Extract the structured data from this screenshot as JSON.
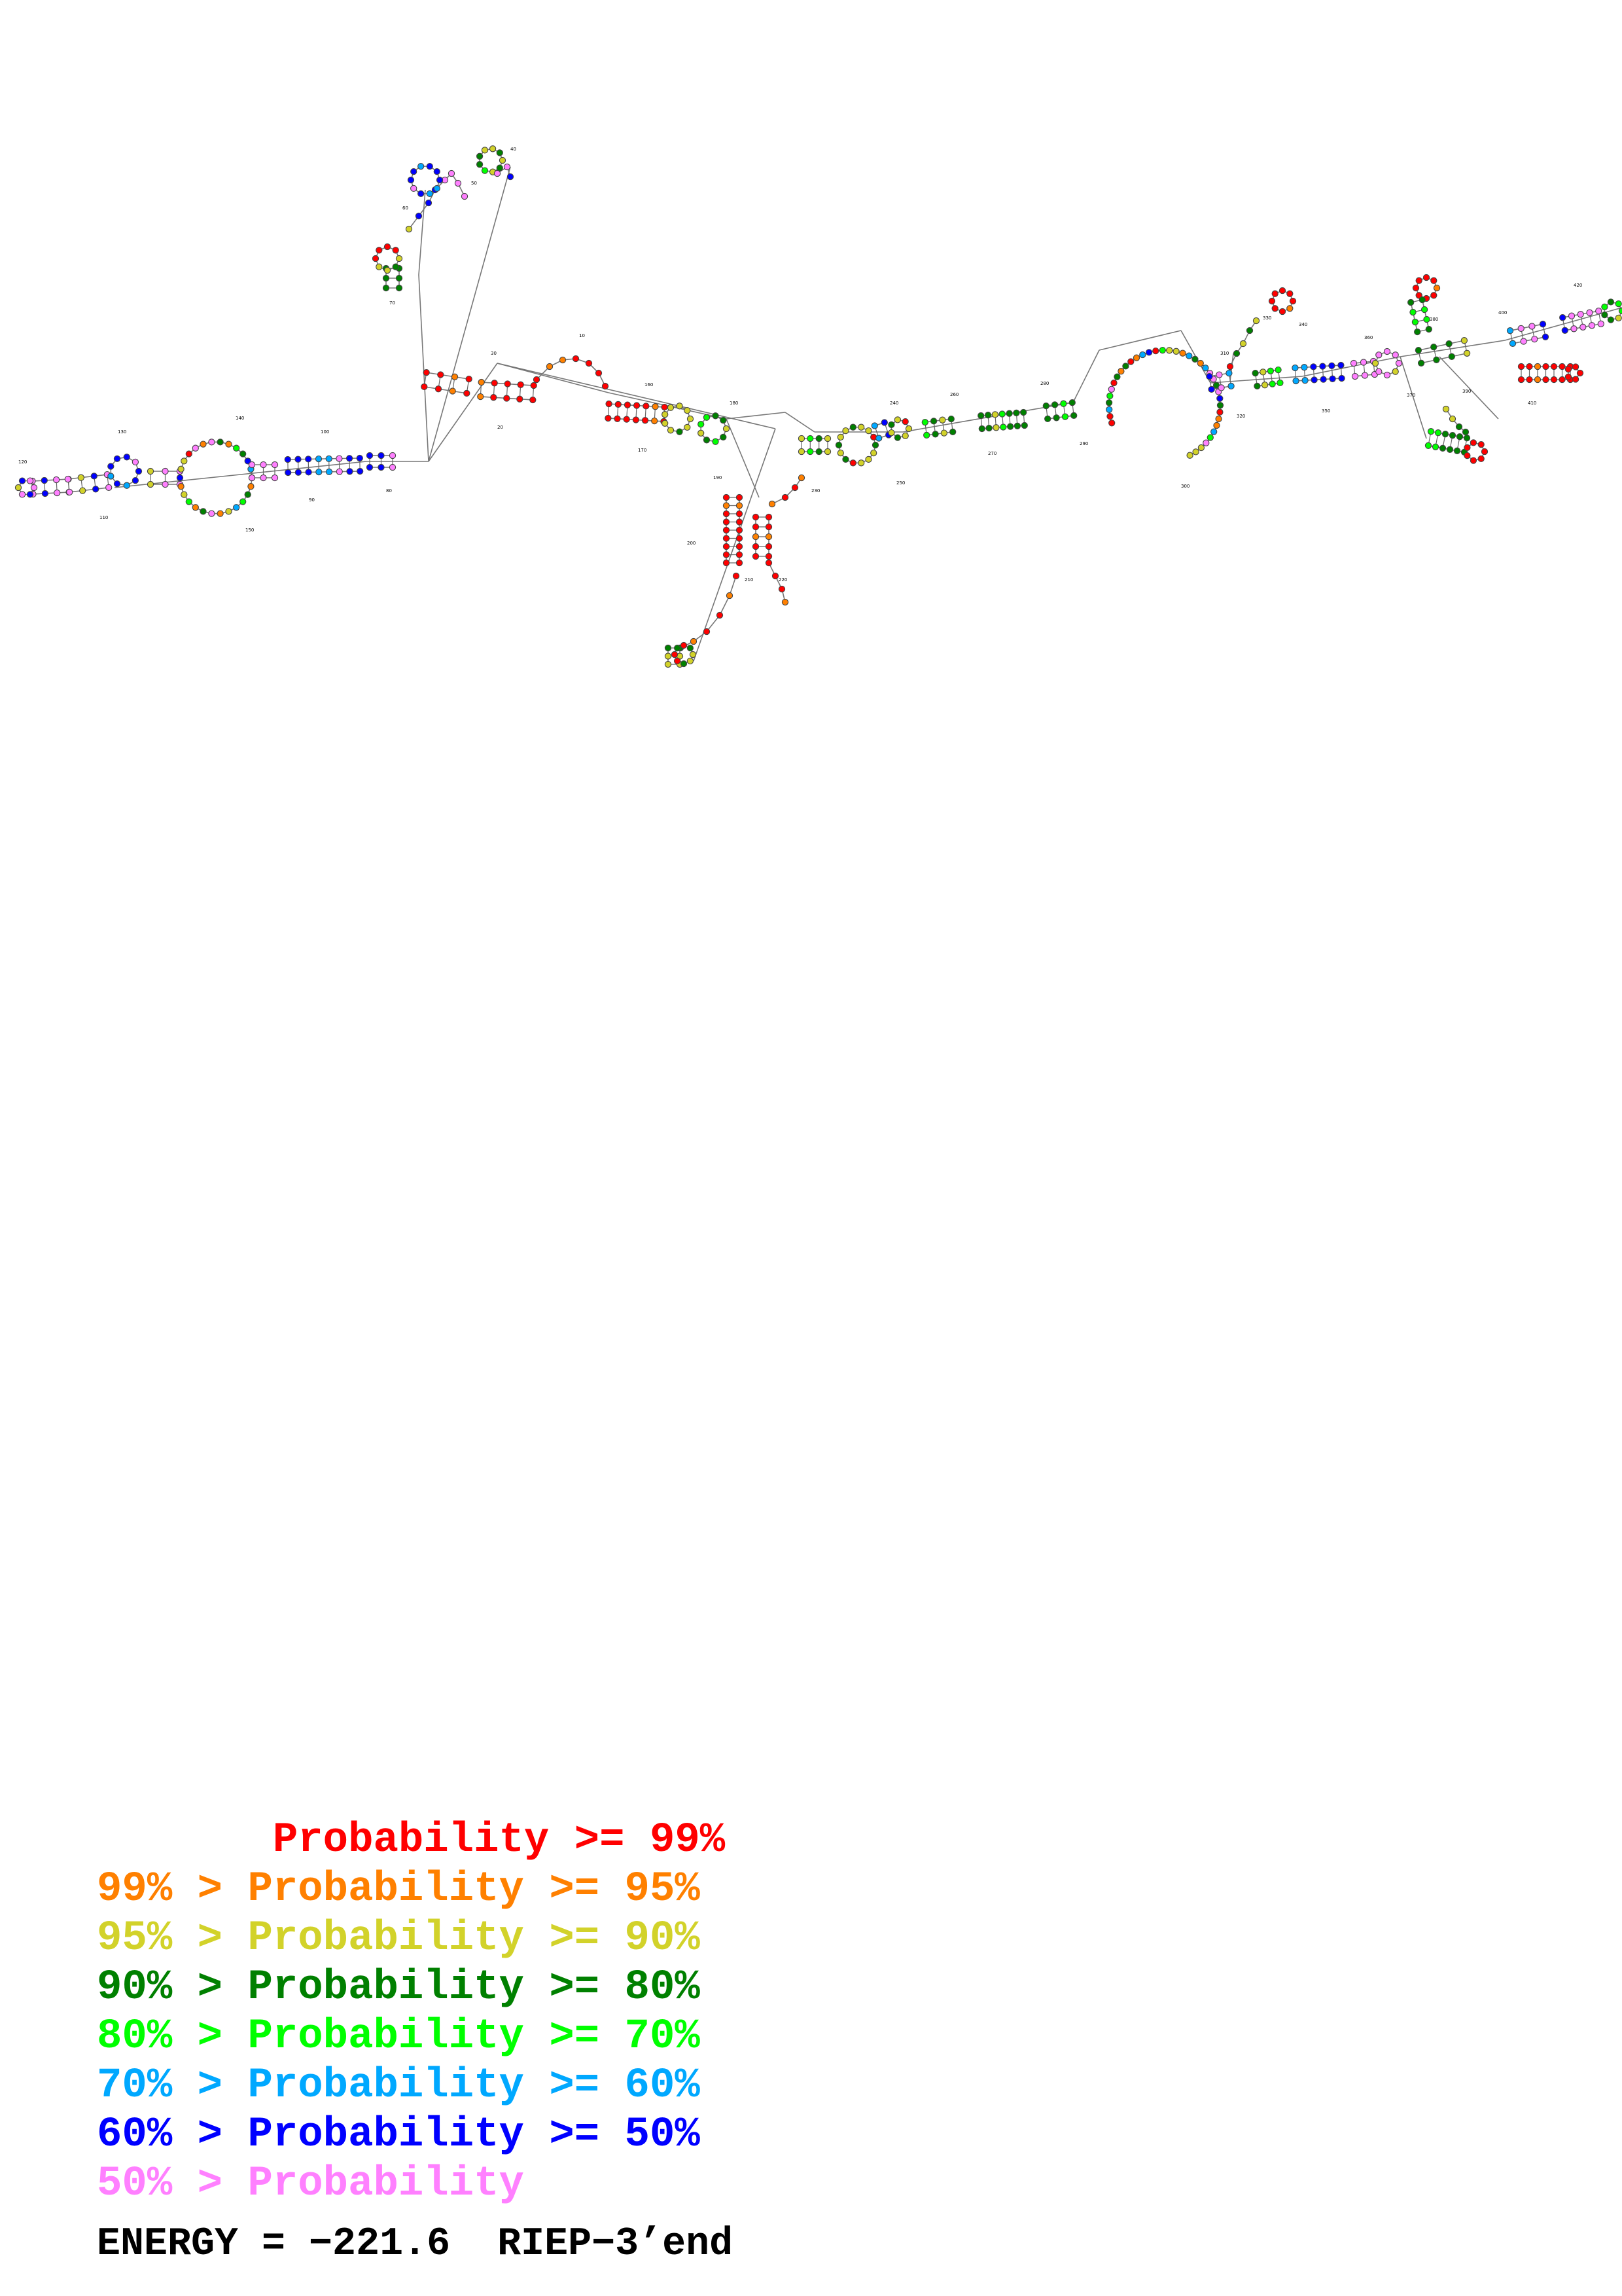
{
  "legend": [
    {
      "text": "       Probability >= 99%",
      "color": "#ff0000"
    },
    {
      "text": "99% > Probability >= 95%",
      "color": "#ff8000"
    },
    {
      "text": "95% > Probability >= 90%",
      "color": "#d2d22a"
    },
    {
      "text": "90% > Probability >= 80%",
      "color": "#008000"
    },
    {
      "text": "80% > Probability >= 70%",
      "color": "#00ff00"
    },
    {
      "text": "70% > Probability >= 60%",
      "color": "#00a8ff"
    },
    {
      "text": "60% > Probability >= 50%",
      "color": "#0000ff"
    },
    {
      "text": "50% > Probability",
      "color": "#ff80ff"
    }
  ],
  "energy_label": "ENERGY = −221.6  RIEP−3’end",
  "nucleotide_labels": [
    "120",
    "130",
    "110",
    "140",
    "150",
    "100",
    "90",
    "80",
    "70",
    "60",
    "50",
    "40",
    "30",
    "20",
    "10",
    "160",
    "170",
    "180",
    "190",
    "200",
    "210",
    "220",
    "230",
    "240",
    "250",
    "260",
    "270",
    "280",
    "290",
    "300",
    "310",
    "320",
    "330",
    "340",
    "350",
    "360",
    "370",
    "380",
    "390",
    "400",
    "410",
    "420",
    "430",
    "440",
    "450",
    "460",
    "470",
    "480",
    "490",
    "500",
    "510",
    "520"
  ]
}
